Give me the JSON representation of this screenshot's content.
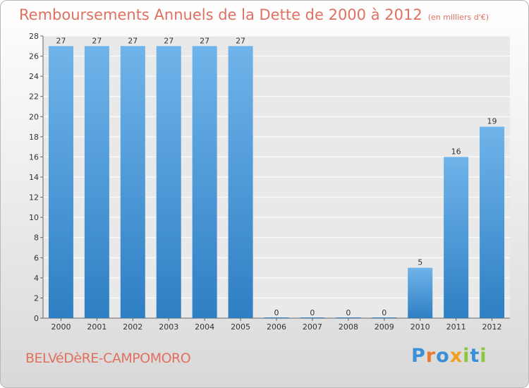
{
  "header": {
    "title": "Remboursements Annuels de la Dette de 2000 à 2012",
    "unit": "(en milliers d'€)"
  },
  "footer": {
    "commune": "BELVéDèRE-CAMPOMORO",
    "logo_letters": [
      "P",
      "r",
      "o",
      "x",
      "i",
      "t",
      "i"
    ],
    "logo_colors": [
      "#3a8fd8",
      "#e87a30",
      "#3a8fd8",
      "#f0a020",
      "#8cc63f",
      "#3a8fd8",
      "#8cc63f"
    ]
  },
  "colors": {
    "bar": "#4a9de0",
    "bar_light": "#6fb4ea",
    "bar_dark": "#2f7fc4",
    "title": "#e07060"
  },
  "chart_data": {
    "type": "bar",
    "title": "Remboursements Annuels de la Dette de 2000 à 2012",
    "xlabel": "",
    "ylabel": "",
    "categories": [
      "2000",
      "2001",
      "2002",
      "2003",
      "2004",
      "2005",
      "2006",
      "2007",
      "2008",
      "2009",
      "2010",
      "2011",
      "2012"
    ],
    "values": [
      27,
      27,
      27,
      27,
      27,
      27,
      0,
      0,
      0,
      0,
      5,
      16,
      19
    ],
    "ylim": [
      0,
      28
    ],
    "yticks": [
      0,
      2,
      4,
      6,
      8,
      10,
      12,
      14,
      16,
      18,
      20,
      22,
      24,
      26,
      28
    ],
    "grid": true
  }
}
